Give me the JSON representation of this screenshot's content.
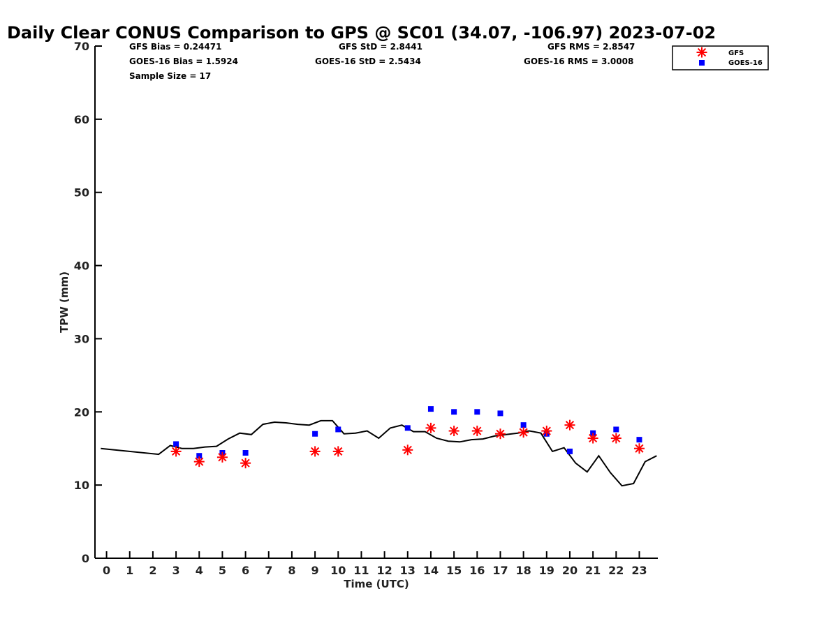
{
  "chart_data": {
    "type": "scatter",
    "title": "Daily Clear CONUS Comparison to GPS @ SC01 (34.07, -106.97) 2023-07-02",
    "xlabel": "Time (UTC)",
    "ylabel": "TPW (mm)",
    "xlim": [
      -0.5,
      23.8
    ],
    "ylim": [
      0,
      70
    ],
    "x_ticks": [
      "0",
      "1",
      "2",
      "3",
      "4",
      "5",
      "6",
      "7",
      "8",
      "9",
      "10",
      "11",
      "12",
      "13",
      "14",
      "15",
      "16",
      "17",
      "18",
      "19",
      "20",
      "21",
      "22",
      "23"
    ],
    "y_ticks": [
      "0",
      "10",
      "20",
      "30",
      "40",
      "50",
      "60",
      "70"
    ],
    "grid": false,
    "legend_position": "top-right",
    "colors": {
      "gfs": "#ff0000",
      "goes": "#0000ff",
      "gps": "#000000"
    },
    "stats": {
      "gfs_bias": "GFS Bias = 0.24471",
      "goes_bias": "GOES-16 Bias = 1.5924",
      "sample_size": "Sample Size = 17",
      "gfs_std": "GFS StD = 2.8441",
      "goes_std": "GOES-16 StD = 2.5434",
      "gfs_rms": "GFS RMS = 2.8547",
      "goes_rms": "GOES-16 RMS = 3.0008"
    },
    "series": [
      {
        "name": "GFS",
        "marker": "asterisk",
        "x": [
          3,
          4,
          5,
          6,
          9,
          10,
          13,
          14,
          15,
          16,
          17,
          18,
          19,
          20,
          21,
          22,
          23
        ],
        "values": [
          14.6,
          13.2,
          13.8,
          13.0,
          14.6,
          14.6,
          14.8,
          17.8,
          17.4,
          17.4,
          17.0,
          17.2,
          17.4,
          18.2,
          16.4,
          16.4,
          15.0
        ]
      },
      {
        "name": "GOES-16",
        "marker": "square",
        "x": [
          3,
          4,
          5,
          6,
          9,
          10,
          13,
          14,
          15,
          16,
          17,
          18,
          19,
          20,
          21,
          22,
          23
        ],
        "values": [
          15.6,
          14.0,
          14.4,
          14.4,
          17.0,
          17.6,
          17.8,
          20.4,
          20.0,
          20.0,
          19.8,
          18.2,
          17.0,
          14.6,
          17.1,
          17.6,
          16.2
        ]
      },
      {
        "marker": "line",
        "x": [
          -0.25,
          2.25,
          2.75,
          3.25,
          3.75,
          4.25,
          4.75,
          5.25,
          5.75,
          6.25,
          6.75,
          7.25,
          7.75,
          8.25,
          8.75,
          9.25,
          9.75,
          10.25,
          10.75,
          11.25,
          11.75,
          12.25,
          12.75,
          13.25,
          13.75,
          14.25,
          14.75,
          15.25,
          15.75,
          16.25,
          16.75,
          17.25,
          17.75,
          18.25,
          18.75,
          19.25,
          19.75,
          20.25,
          20.75,
          21.25,
          21.75,
          22.25,
          22.75,
          23.25,
          23.75
        ],
        "values": [
          15.0,
          14.2,
          15.4,
          15.0,
          15.0,
          15.2,
          15.3,
          16.3,
          17.1,
          16.9,
          18.3,
          18.6,
          18.5,
          18.3,
          18.2,
          18.8,
          18.8,
          17.0,
          17.1,
          17.4,
          16.4,
          17.8,
          18.2,
          17.3,
          17.3,
          16.4,
          16.0,
          15.9,
          16.2,
          16.3,
          16.7,
          16.9,
          17.1,
          17.4,
          17.1,
          14.6,
          15.1,
          13.0,
          11.8,
          14.0,
          11.7,
          9.9,
          10.2,
          13.2,
          14.0
        ]
      }
    ]
  }
}
